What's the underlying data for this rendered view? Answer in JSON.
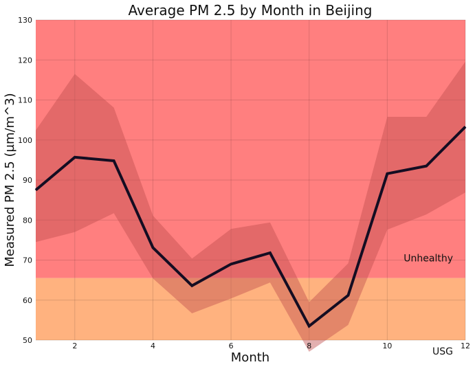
{
  "chart_data": {
    "type": "line",
    "title": "Average PM 2.5 by Month in Beijing",
    "xlabel": "Month",
    "ylabel": "Measured PM 2.5 (µm/m^3)",
    "xlim": [
      1,
      12
    ],
    "ylim": [
      50,
      130
    ],
    "xticks": [
      2,
      4,
      6,
      8,
      10,
      12
    ],
    "yticks": [
      50,
      60,
      70,
      80,
      90,
      100,
      110,
      120,
      130
    ],
    "grid": true,
    "x": [
      1,
      2,
      3,
      4,
      5,
      6,
      7,
      8,
      9,
      10,
      11,
      12
    ],
    "series": [
      {
        "name": "",
        "values": [
          87.5,
          95.7,
          94.8,
          73.1,
          63.6,
          69.0,
          71.8,
          53.5,
          61.2,
          91.6,
          93.5,
          103.3
        ],
        "color": "#140d22"
      }
    ],
    "range_band": {
      "lower": [
        74.5,
        77.0,
        81.7,
        65.4,
        56.7,
        60.4,
        64.4,
        47.1,
        53.8,
        77.6,
        81.4,
        86.9
      ],
      "upper": [
        102.4,
        116.5,
        108.1,
        81.1,
        70.4,
        77.8,
        79.4,
        59.5,
        69.2,
        105.8,
        105.8,
        119.6
      ],
      "color": "#c05050"
    },
    "threshold_bands": [
      {
        "label": "Unhealthy",
        "from": 65.5,
        "to": 130,
        "color": "#ff7f7f"
      },
      {
        "label": "USG",
        "from": 50,
        "to": 65.5,
        "color": "#ffb27f"
      }
    ]
  }
}
